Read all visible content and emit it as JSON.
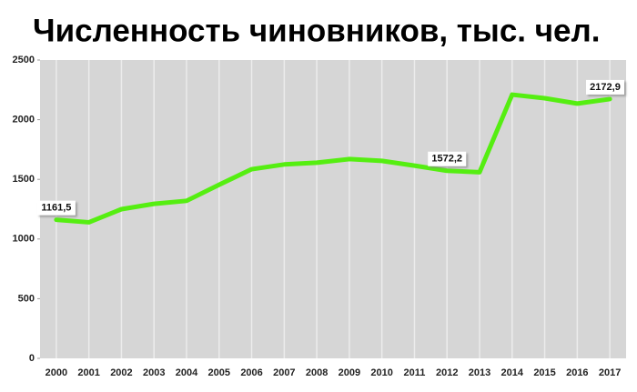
{
  "chart_data": {
    "type": "line",
    "title": "Численность чиновников, тыс. чел.",
    "categories": [
      "2000",
      "2001",
      "2002",
      "2003",
      "2004",
      "2005",
      "2006",
      "2007",
      "2008",
      "2009",
      "2010",
      "2011",
      "2012",
      "2013",
      "2014",
      "2015",
      "2016",
      "2017"
    ],
    "values": [
      1161.5,
      1140,
      1250,
      1295,
      1320,
      1455,
      1585,
      1625,
      1640,
      1670,
      1655,
      1615,
      1572.2,
      1560,
      2210,
      2180,
      2135,
      2172.9
    ],
    "value_labels": [
      "1161,5",
      null,
      null,
      null,
      null,
      null,
      null,
      null,
      null,
      null,
      null,
      null,
      "1572,2",
      null,
      null,
      null,
      null,
      "2172,9"
    ],
    "color": "#55ee11",
    "ylim": [
      0,
      2500
    ],
    "yticks": [
      0,
      500,
      1000,
      1500,
      2000,
      2500
    ],
    "grid": true
  }
}
